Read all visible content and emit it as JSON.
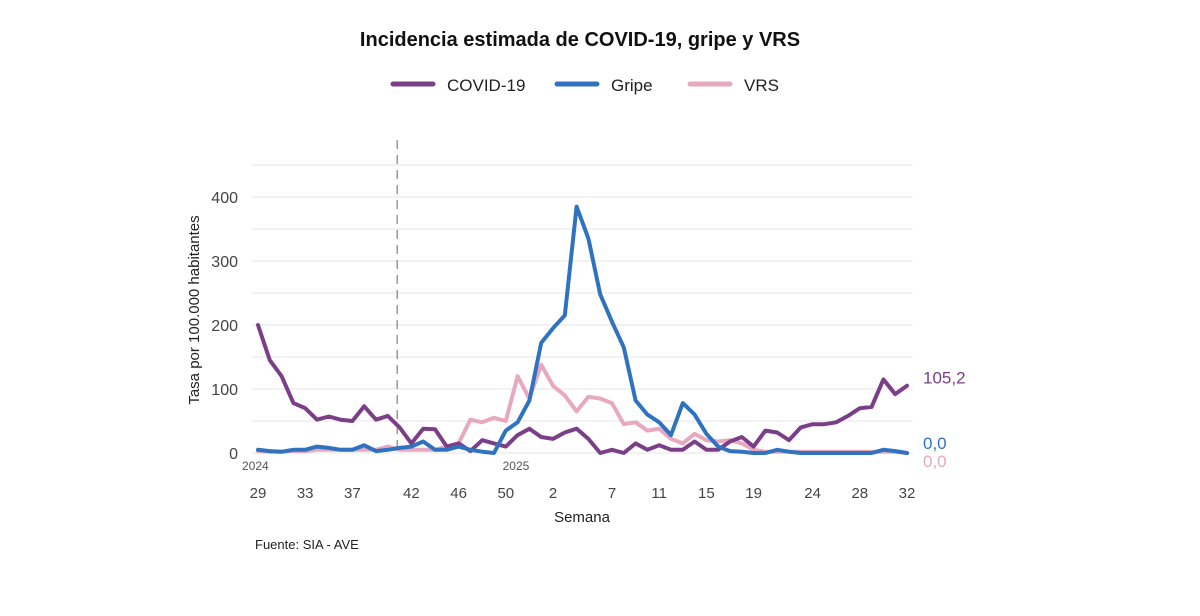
{
  "chart_data": {
    "type": "line",
    "title": "Incidencia estimada de COVID-19, gripe y VRS",
    "xlabel": "Semana",
    "ylabel": "Tasa por 100.000 habitantes",
    "ylim": [
      0,
      400
    ],
    "y_ticks": [
      0,
      100,
      200,
      300,
      400
    ],
    "grid": true,
    "legend_position": "top",
    "season_divider_week_index": 11,
    "year_labels": [
      {
        "index": 0,
        "label": "2024"
      },
      {
        "index": 22,
        "label": "2025"
      }
    ],
    "x_tick_labels": [
      {
        "index": 0,
        "label": "29"
      },
      {
        "index": 4,
        "label": "33"
      },
      {
        "index": 8,
        "label": "37"
      },
      {
        "index": 13,
        "label": "42"
      },
      {
        "index": 17,
        "label": "46"
      },
      {
        "index": 21,
        "label": "50"
      },
      {
        "index": 25,
        "label": "2"
      },
      {
        "index": 30,
        "label": "7"
      },
      {
        "index": 34,
        "label": "11"
      },
      {
        "index": 38,
        "label": "15"
      },
      {
        "index": 42,
        "label": "19"
      },
      {
        "index": 47,
        "label": "24"
      },
      {
        "index": 51,
        "label": "28"
      },
      {
        "index": 55,
        "label": "32"
      }
    ],
    "series": [
      {
        "name": "COVID-19",
        "color": "#7b3f88",
        "end_label": "105,2",
        "values": [
          200,
          145,
          120,
          78,
          70,
          52,
          57,
          52,
          50,
          73,
          52,
          58,
          40,
          15,
          38,
          37,
          10,
          15,
          3,
          20,
          15,
          10,
          28,
          38,
          25,
          22,
          32,
          38,
          22,
          0,
          5,
          0,
          15,
          5,
          12,
          5,
          5,
          18,
          5,
          5,
          18,
          25,
          10,
          35,
          32,
          20,
          40,
          45,
          45,
          48,
          58,
          70,
          72,
          115,
          92,
          105.2
        ]
      },
      {
        "name": "Gripe",
        "color": "#2f73c0",
        "end_label": "0,0",
        "values": [
          5,
          3,
          2,
          5,
          5,
          10,
          8,
          5,
          5,
          12,
          3,
          5,
          8,
          10,
          18,
          5,
          5,
          10,
          5,
          2,
          0,
          35,
          48,
          82,
          172,
          195,
          215,
          385,
          335,
          248,
          205,
          165,
          82,
          60,
          48,
          28,
          78,
          60,
          30,
          10,
          3,
          2,
          0,
          0,
          5,
          2,
          0,
          0,
          0,
          0,
          0,
          0,
          0,
          5,
          3,
          0
        ]
      },
      {
        "name": "VRS",
        "color": "#e8a8bf",
        "end_label": "0,0",
        "values": [
          3,
          2,
          2,
          3,
          3,
          5,
          5,
          5,
          5,
          5,
          5,
          10,
          5,
          5,
          5,
          5,
          10,
          15,
          52,
          48,
          55,
          50,
          120,
          85,
          138,
          105,
          90,
          65,
          88,
          85,
          78,
          45,
          48,
          35,
          38,
          22,
          15,
          30,
          20,
          18,
          20,
          15,
          5,
          2,
          2,
          2,
          2,
          2,
          2,
          2,
          2,
          2,
          2,
          2,
          2,
          0
        ]
      }
    ]
  },
  "source_note": "Fuente: SIA - AVE"
}
